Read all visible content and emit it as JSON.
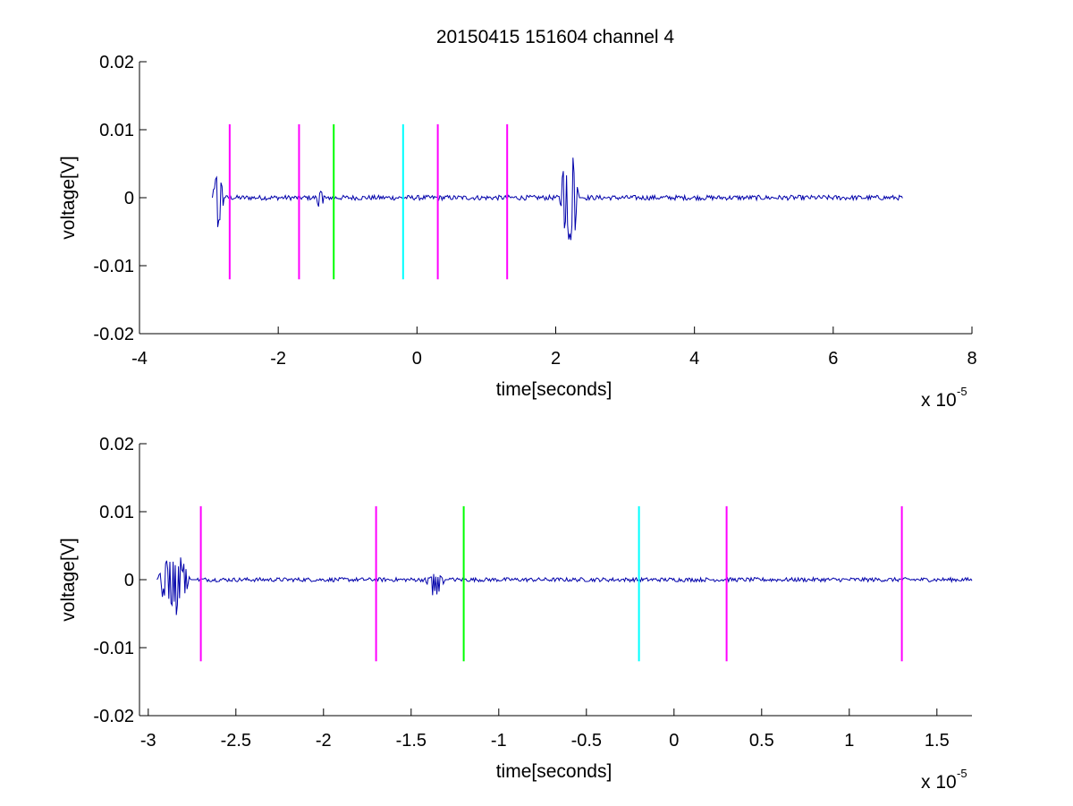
{
  "figure": {
    "title": "20150415 151604 channel 4"
  },
  "chart_data": [
    {
      "type": "line",
      "title": "20150415 151604 channel 4",
      "xlabel": "time[seconds]",
      "ylabel": "voltage[V]",
      "x_multiplier_text": "x 10",
      "x_multiplier_exp": "-5",
      "xlim": [
        -4,
        8
      ],
      "ylim": [
        -0.02,
        0.02
      ],
      "xticks": [
        -4,
        -2,
        0,
        2,
        4,
        6,
        8
      ],
      "xtick_labels": [
        "-4",
        "-2",
        "0",
        "2",
        "4",
        "6",
        "8"
      ],
      "yticks": [
        0.02,
        0.01,
        0,
        -0.01,
        -0.02
      ],
      "ytick_labels": [
        "0.02",
        "0.01",
        "0",
        "-0.01",
        "-0.02"
      ],
      "grid": false,
      "series": [
        {
          "color": "#0000aa",
          "x_range": [
            -2.95,
            7.0
          ],
          "bursts": [
            {
              "x_start": -2.95,
              "x_end": -2.75,
              "y_min": -0.0068,
              "y_max": 0.0052
            },
            {
              "x_start": -1.45,
              "x_end": -1.28,
              "y_min": -0.0032,
              "y_max": 0.0012
            },
            {
              "x_start": 2.05,
              "x_end": 2.4,
              "y_min": -0.011,
              "y_max": 0.0098
            }
          ],
          "baseline": 0,
          "noise_amplitude": 0.0006
        }
      ],
      "vertical_markers": [
        {
          "x": -2.7,
          "color": "#ff00ff",
          "y_range": [
            -0.012,
            0.0108
          ]
        },
        {
          "x": -1.7,
          "color": "#ff00ff",
          "y_range": [
            -0.012,
            0.0108
          ]
        },
        {
          "x": -1.2,
          "color": "#00ff00",
          "y_range": [
            -0.012,
            0.0108
          ]
        },
        {
          "x": -0.2,
          "color": "#00ffff",
          "y_range": [
            -0.012,
            0.0108
          ]
        },
        {
          "x": 0.3,
          "color": "#ff00ff",
          "y_range": [
            -0.012,
            0.0108
          ]
        },
        {
          "x": 1.3,
          "color": "#ff00ff",
          "y_range": [
            -0.012,
            0.0108
          ]
        }
      ]
    },
    {
      "type": "line",
      "title": "",
      "xlabel": "time[seconds]",
      "ylabel": "voltage[V]",
      "x_multiplier_text": "x 10",
      "x_multiplier_exp": "-5",
      "xlim": [
        -3.05,
        1.7
      ],
      "ylim": [
        -0.02,
        0.02
      ],
      "xticks": [
        -3,
        -2.5,
        -2,
        -1.5,
        -1,
        -0.5,
        0,
        0.5,
        1,
        1.5
      ],
      "xtick_labels": [
        "-3",
        "-2.5",
        "-2",
        "-1.5",
        "-1",
        "-0.5",
        "0",
        "0.5",
        "1",
        "1.5"
      ],
      "yticks": [
        0.02,
        0.01,
        0,
        -0.01,
        -0.02
      ],
      "ytick_labels": [
        "0.02",
        "0.01",
        "0",
        "-0.01",
        "-0.02"
      ],
      "grid": false,
      "series": [
        {
          "color": "#0000aa",
          "x_range": [
            -2.95,
            1.7
          ],
          "bursts": [
            {
              "x_start": -2.95,
              "x_end": -2.72,
              "y_min": -0.0068,
              "y_max": 0.0055
            },
            {
              "x_start": -1.42,
              "x_end": -1.28,
              "y_min": -0.0033,
              "y_max": 0.0012
            }
          ],
          "baseline": 0,
          "noise_amplitude": 0.0005
        }
      ],
      "vertical_markers": [
        {
          "x": -2.7,
          "color": "#ff00ff",
          "y_range": [
            -0.012,
            0.0108
          ]
        },
        {
          "x": -1.7,
          "color": "#ff00ff",
          "y_range": [
            -0.012,
            0.0108
          ]
        },
        {
          "x": -1.2,
          "color": "#00ff00",
          "y_range": [
            -0.012,
            0.0108
          ]
        },
        {
          "x": -0.2,
          "color": "#00ffff",
          "y_range": [
            -0.012,
            0.0108
          ]
        },
        {
          "x": 0.3,
          "color": "#ff00ff",
          "y_range": [
            -0.012,
            0.0108
          ]
        },
        {
          "x": 1.3,
          "color": "#ff00ff",
          "y_range": [
            -0.012,
            0.0108
          ]
        }
      ]
    }
  ]
}
